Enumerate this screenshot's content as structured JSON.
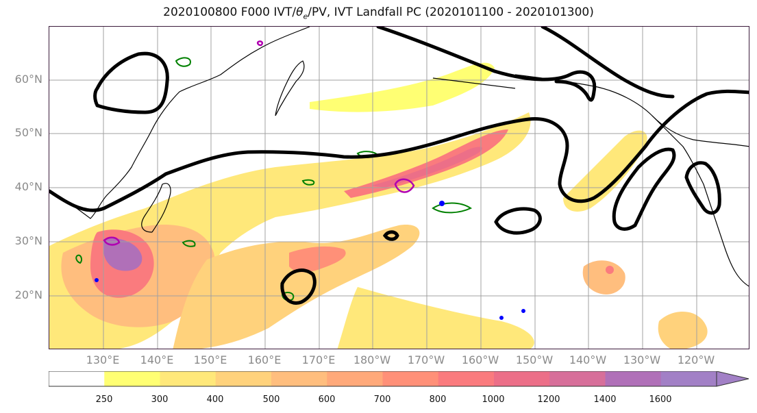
{
  "figure": {
    "title_prefix": "2020100800 F000 IVT/",
    "title_theta": "θ",
    "title_sub": "e",
    "title_suffix": "/PV, IVT Landfall PC (2020101100 - 2020101300)"
  },
  "axes": {
    "lat_labels": [
      "60°N",
      "50°N",
      "40°N",
      "30°N",
      "20°N"
    ],
    "lon_labels": [
      "130°E",
      "140°E",
      "150°E",
      "160°E",
      "170°E",
      "180°W",
      "170°W",
      "160°W",
      "150°W",
      "140°W",
      "130°W",
      "120°W"
    ],
    "lat_range": [
      10,
      70
    ],
    "lon_range_east": [
      120,
      250
    ],
    "gridlines": true
  },
  "colorbar": {
    "levels": [
      "250",
      "300",
      "400",
      "500",
      "600",
      "700",
      "800",
      "1000",
      "1200",
      "1400",
      "1600"
    ],
    "colors": [
      "#ffffff",
      "#ffff73",
      "#ffe87a",
      "#ffd27c",
      "#ffbe7e",
      "#ffa97a",
      "#ff9078",
      "#fa7b7e",
      "#ec6f88",
      "#d76f9a",
      "#b070b8",
      "#a280c6"
    ],
    "extend": "max"
  },
  "styles": {
    "land_color": "#000000",
    "pc_contour_color": "#000000",
    "theta_e_contour_color": "#008000",
    "pv_contour_color": "#b000b0",
    "blue_feature_color": "#0000ff"
  }
}
